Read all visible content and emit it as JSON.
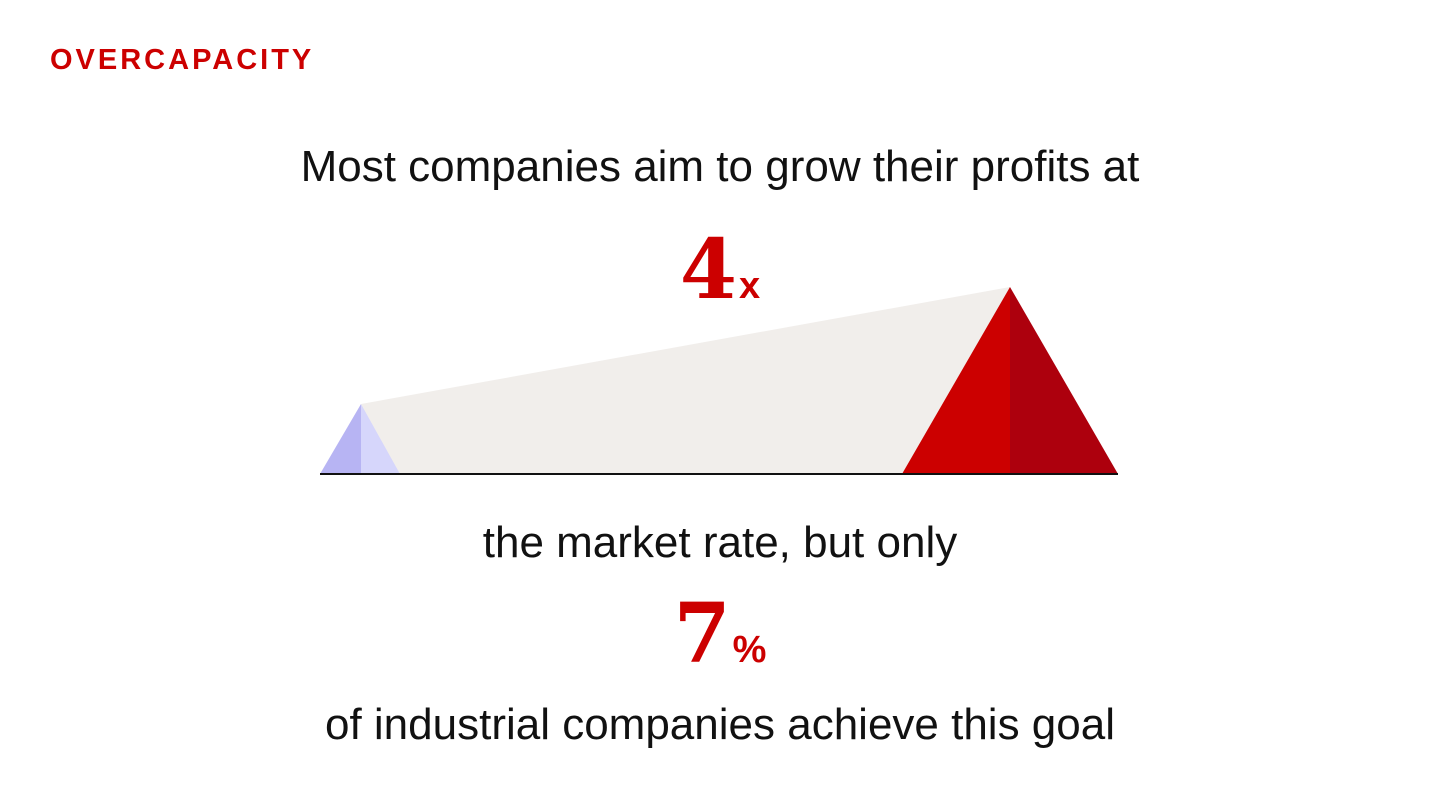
{
  "label": "OVERCAPACITY",
  "line1": "Most companies aim to grow their profits at",
  "stat1": {
    "value": "4",
    "unit": "x"
  },
  "line2": "the market rate, but only",
  "stat2": {
    "value": "7",
    "unit": "%"
  },
  "line3": "of industrial companies achieve this goal",
  "colors": {
    "accent": "#cc0000",
    "accent_dark": "#ad000d",
    "market_light": "#d6d6fb",
    "market_dark": "#b7b4f3",
    "band": "#f1eeeb",
    "baseline": "#111111"
  }
}
